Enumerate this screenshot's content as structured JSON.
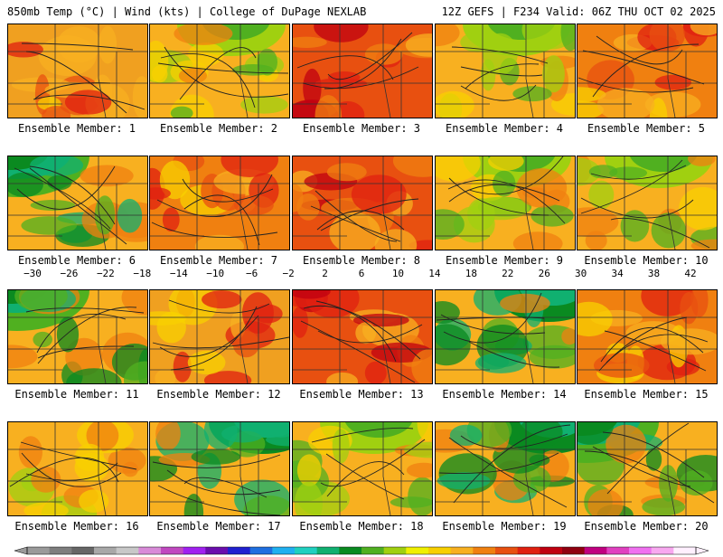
{
  "header": {
    "left": "850mb Temp (°C) | Wind (kts) | College of DuPage NEXLAB",
    "right": "12Z GEFS | F234 Valid: 06Z THU OCT 02 2025"
  },
  "members": [
    {
      "label": "Ensemble Member: 1",
      "style": "warm-north"
    },
    {
      "label": "Ensemble Member: 2",
      "style": "cool-north"
    },
    {
      "label": "Ensemble Member: 3",
      "style": "hot"
    },
    {
      "label": "Ensemble Member: 4",
      "style": "cool-north"
    },
    {
      "label": "Ensemble Member: 5",
      "style": "warm-west"
    },
    {
      "label": "Ensemble Member: 6",
      "style": "cold-northwest"
    },
    {
      "label": "Ensemble Member: 7",
      "style": "warm-center"
    },
    {
      "label": "Ensemble Member: 8",
      "style": "hot"
    },
    {
      "label": "Ensemble Member: 9",
      "style": "cool-north"
    },
    {
      "label": "Ensemble Member: 10",
      "style": "cool-north"
    },
    {
      "label": "Ensemble Member: 11",
      "style": "cold-northwest"
    },
    {
      "label": "Ensemble Member: 12",
      "style": "warm-north"
    },
    {
      "label": "Ensemble Member: 13",
      "style": "hot"
    },
    {
      "label": "Ensemble Member: 14",
      "style": "cold-east"
    },
    {
      "label": "Ensemble Member: 15",
      "style": "warm-center"
    },
    {
      "label": "Ensemble Member: 16",
      "style": "mild"
    },
    {
      "label": "Ensemble Member: 17",
      "style": "cold-east"
    },
    {
      "label": "Ensemble Member: 18",
      "style": "cool-north"
    },
    {
      "label": "Ensemble Member: 19",
      "style": "cold-east"
    },
    {
      "label": "Ensemble Member: 20",
      "style": "cold-northwest"
    }
  ],
  "colorbar": {
    "ticks": [
      "−30",
      "−26",
      "−22",
      "−18",
      "−14",
      "−10",
      "−6",
      "−2",
      "2",
      "6",
      "10",
      "14",
      "18",
      "22",
      "26",
      "30",
      "34",
      "38",
      "42"
    ],
    "colors": [
      "#9a9a9a",
      "#7e7e7e",
      "#666666",
      "#a8a8a8",
      "#c8c8c8",
      "#d88ad8",
      "#c048c0",
      "#a020f0",
      "#6a0dad",
      "#2020d0",
      "#1f6fe0",
      "#20b0f0",
      "#20d0c0",
      "#10b070",
      "#0a8a20",
      "#50b020",
      "#a0d010",
      "#f0f000",
      "#f8d000",
      "#f8b020",
      "#f08010",
      "#e85010",
      "#e02010",
      "#c00010",
      "#900010",
      "#c00080",
      "#e040c0",
      "#f070f0",
      "#f8a8f0",
      "#fff0ff"
    ]
  }
}
